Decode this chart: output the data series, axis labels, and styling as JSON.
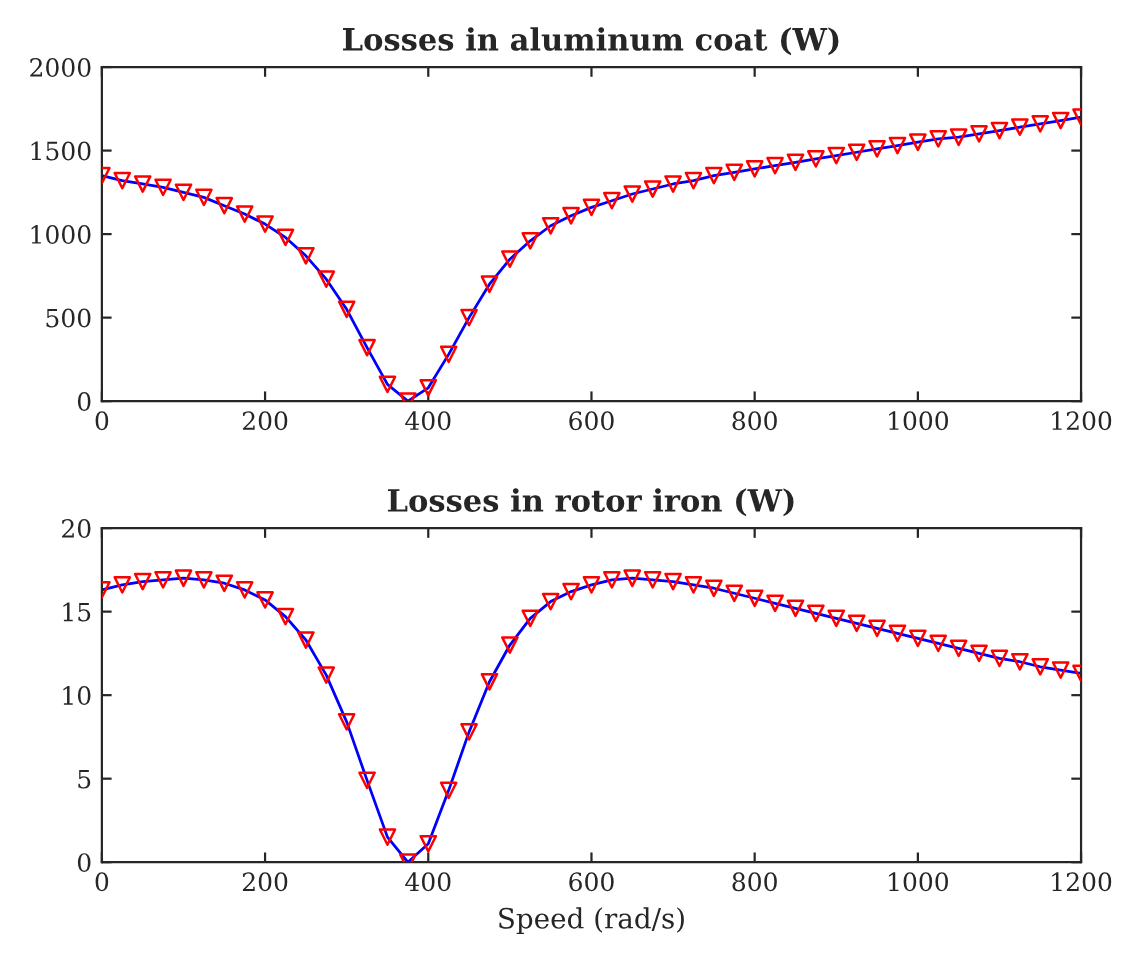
{
  "chart_data": [
    {
      "type": "line",
      "title": "Losses in aluminum coat (W)",
      "x": [
        0,
        25,
        50,
        75,
        100,
        125,
        150,
        175,
        200,
        225,
        250,
        275,
        300,
        325,
        350,
        375,
        400,
        425,
        450,
        475,
        500,
        525,
        550,
        575,
        600,
        625,
        650,
        675,
        700,
        725,
        750,
        775,
        800,
        825,
        850,
        875,
        900,
        925,
        950,
        975,
        1000,
        1025,
        1050,
        1075,
        1100,
        1125,
        1150,
        1175,
        1200
      ],
      "series": [
        {
          "color": "#0000ff",
          "marker": "none",
          "line_style": "solid",
          "values": [
            1350,
            1320,
            1300,
            1280,
            1250,
            1220,
            1170,
            1120,
            1060,
            980,
            870,
            730,
            550,
            320,
            100,
            0,
            80,
            280,
            500,
            700,
            850,
            960,
            1050,
            1110,
            1160,
            1200,
            1240,
            1270,
            1300,
            1320,
            1350,
            1370,
            1390,
            1410,
            1430,
            1450,
            1470,
            1490,
            1510,
            1530,
            1550,
            1570,
            1580,
            1600,
            1620,
            1640,
            1660,
            1680,
            1700
          ]
        },
        {
          "type": "scatter",
          "color": "#ff0000",
          "marker": "triangle",
          "values": [
            1350,
            1320,
            1300,
            1280,
            1250,
            1220,
            1170,
            1120,
            1060,
            980,
            870,
            730,
            550,
            320,
            100,
            0,
            80,
            280,
            500,
            700,
            850,
            960,
            1050,
            1110,
            1160,
            1200,
            1240,
            1270,
            1300,
            1320,
            1350,
            1370,
            1390,
            1410,
            1430,
            1450,
            1470,
            1490,
            1510,
            1530,
            1550,
            1570,
            1580,
            1600,
            1620,
            1640,
            1660,
            1680,
            1700
          ]
        }
      ],
      "xlim": [
        0,
        1200
      ],
      "xticks": [
        0,
        200,
        400,
        600,
        800,
        1000,
        1200
      ],
      "ylim": [
        0,
        2000
      ],
      "yticks": [
        0,
        500,
        1000,
        1500,
        2000
      ],
      "grid": false,
      "legend": false
    },
    {
      "type": "line",
      "title": "Losses in rotor iron (W)",
      "xlabel": "Speed (rad/s)",
      "x": [
        0,
        25,
        50,
        75,
        100,
        125,
        150,
        175,
        200,
        225,
        250,
        275,
        300,
        325,
        350,
        375,
        400,
        425,
        450,
        475,
        500,
        525,
        550,
        575,
        600,
        625,
        650,
        675,
        700,
        725,
        750,
        775,
        800,
        825,
        850,
        875,
        900,
        925,
        950,
        975,
        1000,
        1025,
        1050,
        1075,
        1100,
        1125,
        1150,
        1175,
        1200
      ],
      "series": [
        {
          "color": "#0000ff",
          "marker": "none",
          "line_style": "solid",
          "values": [
            16.3,
            16.6,
            16.8,
            16.9,
            17.0,
            16.9,
            16.7,
            16.3,
            15.7,
            14.7,
            13.3,
            11.2,
            8.4,
            4.9,
            1.5,
            0,
            1.1,
            4.3,
            7.8,
            10.8,
            13.0,
            14.6,
            15.6,
            16.2,
            16.6,
            16.9,
            17.0,
            16.9,
            16.8,
            16.6,
            16.4,
            16.1,
            15.8,
            15.5,
            15.2,
            14.9,
            14.6,
            14.3,
            14.0,
            13.7,
            13.4,
            13.1,
            12.8,
            12.5,
            12.2,
            12.0,
            11.7,
            11.5,
            11.3
          ]
        },
        {
          "type": "scatter",
          "color": "#ff0000",
          "marker": "triangle",
          "values": [
            16.3,
            16.6,
            16.8,
            16.9,
            17.0,
            16.9,
            16.7,
            16.3,
            15.7,
            14.7,
            13.3,
            11.2,
            8.4,
            4.9,
            1.5,
            0,
            1.1,
            4.3,
            7.8,
            10.8,
            13.0,
            14.6,
            15.6,
            16.2,
            16.6,
            16.9,
            17.0,
            16.9,
            16.8,
            16.6,
            16.4,
            16.1,
            15.8,
            15.5,
            15.2,
            14.9,
            14.6,
            14.3,
            14.0,
            13.7,
            13.4,
            13.1,
            12.8,
            12.5,
            12.2,
            12.0,
            11.7,
            11.5,
            11.3
          ]
        }
      ],
      "xlim": [
        0,
        1200
      ],
      "xticks": [
        0,
        200,
        400,
        600,
        800,
        1000,
        1200
      ],
      "ylim": [
        0,
        20
      ],
      "yticks": [
        0,
        5,
        10,
        15,
        20
      ],
      "grid": false,
      "legend": false
    }
  ]
}
